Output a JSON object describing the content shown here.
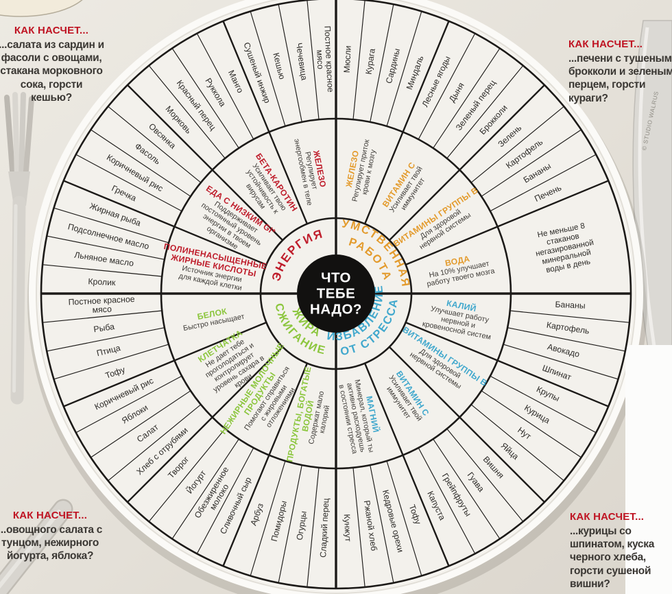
{
  "callouts": {
    "top_left": {
      "heading": "КАК НАСЧЕТ...",
      "body": "...салата из сардин и фасоли с овощами, стакана морковного сока, горсти кешью?"
    },
    "top_right": {
      "heading": "КАК НАСЧЕТ...",
      "body": "...печени с тушеными брокколи и зеленым перцем, горсти кураги?"
    },
    "bottom_left": {
      "heading": "КАК НАСЧЕТ...",
      "body": "...овощного салата с тунцом, нежирного йогурта, яблока?"
    },
    "bottom_right": {
      "heading": "КАК НАСЧЕТ...",
      "body": "...курицы со шпинатом, куска черного хлеба, горсти сушеной вишни?"
    }
  },
  "watermark": "© STUDIO WALRUS",
  "wheel": {
    "center_title_lines": [
      "ЧТО",
      "ТЕБЕ",
      "НАДО?"
    ],
    "colors": {
      "mental": "#e39b2d",
      "stress": "#41a8cd",
      "fat": "#8cc63e",
      "energy": "#bf1e2c",
      "line": "#1c1a18",
      "food_text": "#2d2b28",
      "desc_text": "#3f3c38"
    },
    "quadrants": [
      {
        "id": "mental",
        "start_angle": 0,
        "label_lines": [
          "УМСТВЕННАЯ",
          "РАБОТА"
        ],
        "nutrients": [
          {
            "title": "ЖЕЛЕЗО",
            "desc": "Регулирует приток крови к мозгу",
            "foods": [
              "Мюсли",
              "Курага",
              "Сардины",
              "Миндаль"
            ]
          },
          {
            "title": "ВИТАМИН С",
            "desc": "Усиливает твой иммунитет",
            "foods": [
              "Лесные ягоды",
              "Дыня",
              "Зеленый перец",
              "Брокколи"
            ]
          },
          {
            "title": "ВИТАМИНЫ ГРУППЫ В",
            "desc": "Для здоровой нервной системы",
            "foods": [
              "Зелень",
              "Картофель",
              "Бананы",
              "Печень"
            ]
          },
          {
            "title": "ВОДА",
            "desc": "На 10% улучшает работу твоего мозга",
            "foods": [],
            "outer_text": "Не меньше 8 стаканов негазированной минеральной воды в день"
          }
        ]
      },
      {
        "id": "stress",
        "start_angle": 90,
        "label_lines": [
          "ИЗБАВЛЕНИЕ",
          "ОТ СТРЕССА"
        ],
        "nutrients": [
          {
            "title": "КАЛИЙ",
            "desc": "Улучшает работу нервной и кровеносной систем",
            "foods": [
              "Бананы",
              "Картофель",
              "Авокадо",
              "Шпинат"
            ]
          },
          {
            "title": "ВИТАМИНЫ ГРУППЫ В",
            "desc": "Для здоровой нервной системы",
            "foods": [
              "Крупы",
              "Курица",
              "Нут",
              "Яйца"
            ]
          },
          {
            "title": "ВИТАМИН С",
            "desc": "Усиливает твой иммунитет",
            "foods": [
              "Вишня",
              "Гуава",
              "Грейпфруты",
              "Капуста"
            ]
          },
          {
            "title": "МАГНИЙ",
            "desc": "Минерал, который ты активно расходуешь в состоянии стресса",
            "foods": [
              "Тофу",
              "Кедровые орехи",
              "Ржаной хлеб",
              "Кунжут"
            ]
          }
        ]
      },
      {
        "id": "fat",
        "start_angle": 180,
        "label_lines": [
          "СЖИГАНИЕ",
          "ЖИРА"
        ],
        "nutrients": [
          {
            "title": "ПРОДУКТЫ, БОГАТЫЕ ВОДОЙ",
            "desc": "Содержат мало калорий",
            "foods": [
              "Сладкий перец",
              "Огурцы",
              "Помидоры",
              "Арбуз"
            ]
          },
          {
            "title": "НЕЖИРНЫЕ МОЛОЧНЫЕ ПРОДУКТЫ",
            "desc": "Помогают справиться с жировыми отложениями",
            "foods": [
              "Сливочный сыр",
              "Обезжиренное молоко",
              "Йогурт",
              "Творог"
            ]
          },
          {
            "title": "КЛЕТЧАТКА",
            "desc": "Не дает тебе проголодаться и контролирует уровень сахара в крови",
            "foods": [
              "Хлеб с отрубями",
              "Салат",
              "Яблоки",
              "Коричневый рис"
            ]
          },
          {
            "title": "БЕЛОК",
            "desc": "Быстро насыщает",
            "foods": [
              "Тофу",
              "Птица",
              "Рыба",
              "Постное красное мясо"
            ]
          }
        ]
      },
      {
        "id": "energy",
        "start_angle": 270,
        "label_lines": [
          "ЭНЕРГИЯ"
        ],
        "nutrients": [
          {
            "title": "ПОЛИНЕНАСЫЩЕННЫЕ ЖИРНЫЕ КИСЛОТЫ",
            "desc": "Источник энергии для каждой клетки",
            "foods": [
              "Кролик",
              "Льняное масло",
              "Подсолнечное масло",
              "Жирная рыба"
            ]
          },
          {
            "title": "ЕДА С НИЗКИМ GI*",
            "desc": "Поддерживает постоянный уровень энергии в твоем организме",
            "foods": [
              "Гречка",
              "Коричневый рис",
              "Фасоль",
              "Овсянка"
            ]
          },
          {
            "title": "БЕТА-КАРОТИН",
            "desc": "Усиливает твою устойчивость к вирусам",
            "foods": [
              "Морковь",
              "Красный перец",
              "Руккола",
              "Манго"
            ]
          },
          {
            "title": "ЖЕЛЕЗО",
            "desc": "Регулирует энергообмен в теле",
            "foods": [
              "Сушеный инжир",
              "Кешью",
              "Чечевица",
              "Постное красное мясо"
            ]
          }
        ]
      }
    ]
  }
}
